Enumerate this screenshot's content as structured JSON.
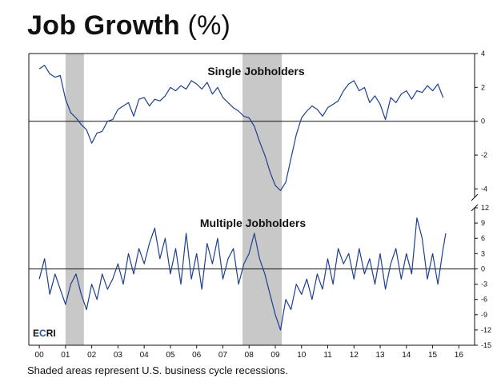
{
  "header": {
    "title_main": "Job Growth",
    "title_unit": "(%)"
  },
  "footnote": "Shaded areas represent U.S. business cycle recessions.",
  "logo": {
    "text": "ECRI",
    "accent_color": "#1f55b3"
  },
  "colors": {
    "line": "#1f3f8f",
    "recession": "#c8c8c8",
    "frame": "#111111"
  },
  "chart_data": [
    {
      "type": "line",
      "title": "Single Jobholders",
      "ylim": [
        -4.5,
        4
      ],
      "yticks": [
        4,
        2,
        0,
        -2,
        -4
      ],
      "ytick_labels": [
        "4",
        "2",
        "0",
        "-2",
        "-4"
      ],
      "recessions": [
        [
          2001.0,
          2001.7
        ],
        [
          2007.75,
          2009.25
        ]
      ],
      "series": [
        {
          "x": [
            2000.0,
            2000.2,
            2000.4,
            2000.6,
            2000.8,
            2001.0,
            2001.2,
            2001.4,
            2001.6,
            2001.8,
            2002.0,
            2002.2,
            2002.4,
            2002.6,
            2002.8,
            2003.0,
            2003.2,
            2003.4,
            2003.6,
            2003.8,
            2004.0,
            2004.2,
            2004.4,
            2004.6,
            2004.8,
            2005.0,
            2005.2,
            2005.4,
            2005.6,
            2005.8,
            2006.0,
            2006.2,
            2006.4,
            2006.6,
            2006.8,
            2007.0,
            2007.2,
            2007.4,
            2007.6,
            2007.8,
            2008.0,
            2008.2,
            2008.4,
            2008.6,
            2008.8,
            2009.0,
            2009.2,
            2009.4,
            2009.6,
            2009.8,
            2010.0,
            2010.2,
            2010.4,
            2010.6,
            2010.8,
            2011.0,
            2011.2,
            2011.4,
            2011.6,
            2011.8,
            2012.0,
            2012.2,
            2012.4,
            2012.6,
            2012.8,
            2013.0,
            2013.2,
            2013.4,
            2013.6,
            2013.8,
            2014.0,
            2014.2,
            2014.4,
            2014.6,
            2014.8,
            2015.0,
            2015.2,
            2015.4
          ],
          "values": [
            3.1,
            3.3,
            2.8,
            2.6,
            2.7,
            1.3,
            0.5,
            0.2,
            -0.2,
            -0.5,
            -1.3,
            -0.7,
            -0.6,
            0.0,
            0.1,
            0.7,
            0.9,
            1.1,
            0.3,
            1.3,
            1.4,
            0.9,
            1.3,
            1.2,
            1.5,
            2.0,
            1.8,
            2.1,
            1.9,
            2.4,
            2.2,
            1.9,
            2.3,
            1.6,
            2.0,
            1.4,
            1.1,
            0.8,
            0.6,
            0.3,
            0.2,
            -0.3,
            -1.2,
            -2.0,
            -3.0,
            -3.8,
            -4.1,
            -3.6,
            -2.2,
            -0.8,
            0.2,
            0.6,
            0.9,
            0.7,
            0.3,
            0.8,
            1.0,
            1.2,
            1.8,
            2.2,
            2.4,
            1.8,
            2.0,
            1.1,
            1.5,
            1.0,
            0.1,
            1.4,
            1.1,
            1.6,
            1.8,
            1.3,
            1.8,
            1.7,
            2.1,
            1.8,
            2.2,
            1.4
          ]
        }
      ]
    },
    {
      "type": "line",
      "title": "Multiple Jobholders",
      "ylim": [
        -15,
        12
      ],
      "yticks": [
        12,
        9,
        6,
        3,
        0,
        -3,
        -6,
        -9,
        -12,
        -15
      ],
      "ytick_labels": [
        "12",
        "9",
        "6",
        "3",
        "0",
        "-3",
        "-6",
        "-9",
        "-12",
        "-15"
      ],
      "xlim": [
        1999.6,
        2016.6
      ],
      "xticks": [
        2000,
        2001,
        2002,
        2003,
        2004,
        2005,
        2006,
        2007,
        2008,
        2009,
        2010,
        2011,
        2012,
        2013,
        2014,
        2015,
        2016
      ],
      "xtick_labels": [
        "00",
        "01",
        "02",
        "03",
        "04",
        "05",
        "06",
        "07",
        "08",
        "09",
        "10",
        "11",
        "12",
        "13",
        "14",
        "15",
        "16"
      ],
      "recessions": [
        [
          2001.0,
          2001.7
        ],
        [
          2007.75,
          2009.25
        ]
      ],
      "series": [
        {
          "x": [
            2000.0,
            2000.2,
            2000.4,
            2000.6,
            2000.8,
            2001.0,
            2001.2,
            2001.4,
            2001.6,
            2001.8,
            2002.0,
            2002.2,
            2002.4,
            2002.6,
            2002.8,
            2003.0,
            2003.2,
            2003.4,
            2003.6,
            2003.8,
            2004.0,
            2004.2,
            2004.4,
            2004.6,
            2004.8,
            2005.0,
            2005.2,
            2005.4,
            2005.6,
            2005.8,
            2006.0,
            2006.2,
            2006.4,
            2006.6,
            2006.8,
            2007.0,
            2007.2,
            2007.4,
            2007.6,
            2007.8,
            2008.0,
            2008.2,
            2008.4,
            2008.6,
            2008.8,
            2009.0,
            2009.2,
            2009.4,
            2009.6,
            2009.8,
            2010.0,
            2010.2,
            2010.4,
            2010.6,
            2010.8,
            2011.0,
            2011.2,
            2011.4,
            2011.6,
            2011.8,
            2012.0,
            2012.2,
            2012.4,
            2012.6,
            2012.8,
            2013.0,
            2013.2,
            2013.4,
            2013.6,
            2013.8,
            2014.0,
            2014.2,
            2014.4,
            2014.6,
            2014.8,
            2015.0,
            2015.2,
            2015.4,
            2015.5
          ],
          "values": [
            -2,
            2,
            -5,
            -1,
            -4,
            -7,
            -3,
            -1,
            -5,
            -8,
            -3,
            -6,
            -1,
            -4,
            -2,
            1,
            -3,
            3,
            -1,
            4,
            1,
            5,
            8,
            2,
            6,
            -1,
            4,
            -3,
            7,
            -2,
            3,
            -4,
            5,
            1,
            6,
            -2,
            2,
            4,
            -3,
            1,
            3,
            7,
            2,
            -1,
            -5,
            -9,
            -12,
            -6,
            -8,
            -3,
            -5,
            -2,
            -6,
            -1,
            -4,
            2,
            -3,
            4,
            1,
            3,
            -2,
            4,
            -1,
            2,
            -3,
            3,
            -4,
            1,
            4,
            -2,
            3,
            -1,
            10,
            6,
            -2,
            3,
            -3,
            4,
            7
          ]
        }
      ]
    }
  ]
}
